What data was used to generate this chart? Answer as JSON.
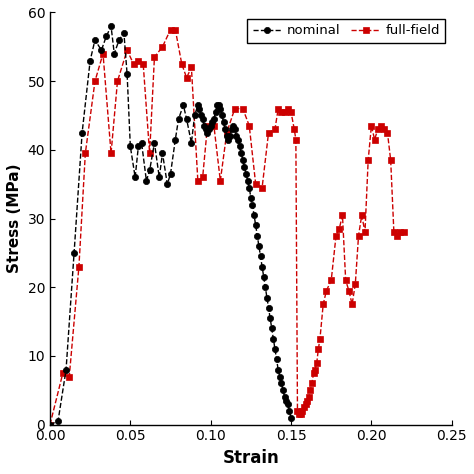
{
  "nominal_strain": [
    0.0,
    0.005,
    0.01,
    0.015,
    0.02,
    0.025,
    0.028,
    0.032,
    0.035,
    0.038,
    0.04,
    0.043,
    0.046,
    0.048,
    0.05,
    0.053,
    0.055,
    0.057,
    0.06,
    0.062,
    0.065,
    0.068,
    0.07,
    0.073,
    0.075,
    0.078,
    0.08,
    0.083,
    0.085,
    0.088,
    0.09,
    0.092,
    0.093,
    0.094,
    0.095,
    0.096,
    0.097,
    0.098,
    0.099,
    0.1,
    0.101,
    0.102,
    0.103,
    0.104,
    0.105,
    0.106,
    0.107,
    0.108,
    0.109,
    0.11,
    0.111,
    0.112,
    0.113,
    0.114,
    0.115,
    0.116,
    0.117,
    0.118,
    0.119,
    0.12,
    0.121,
    0.122,
    0.123,
    0.124,
    0.125,
    0.126,
    0.127,
    0.128,
    0.129,
    0.13,
    0.131,
    0.132,
    0.133,
    0.134,
    0.135,
    0.136,
    0.137,
    0.138,
    0.139,
    0.14,
    0.141,
    0.142,
    0.143,
    0.144,
    0.145,
    0.146,
    0.147,
    0.148,
    0.149,
    0.15
  ],
  "nominal_stress": [
    0.0,
    0.5,
    8.0,
    25.0,
    42.5,
    53.0,
    56.0,
    54.5,
    56.5,
    58.0,
    54.0,
    56.0,
    57.0,
    51.0,
    40.5,
    36.0,
    40.5,
    41.0,
    35.5,
    37.0,
    41.0,
    36.0,
    39.5,
    35.0,
    36.5,
    41.5,
    44.5,
    46.5,
    44.5,
    41.0,
    45.0,
    46.5,
    46.0,
    45.0,
    44.5,
    43.5,
    43.0,
    42.5,
    43.0,
    43.5,
    44.0,
    44.5,
    45.5,
    46.5,
    46.5,
    46.0,
    45.0,
    44.0,
    43.0,
    42.0,
    41.5,
    42.0,
    43.0,
    43.5,
    43.0,
    42.0,
    41.5,
    40.5,
    39.5,
    38.5,
    37.5,
    36.5,
    35.5,
    34.5,
    33.0,
    32.0,
    30.5,
    29.0,
    27.5,
    26.0,
    24.5,
    23.0,
    21.5,
    20.0,
    18.5,
    17.0,
    15.5,
    14.0,
    12.5,
    11.0,
    9.5,
    8.0,
    7.0,
    6.0,
    5.0,
    4.0,
    3.5,
    3.0,
    2.0,
    1.0
  ],
  "fullfield_strain": [
    0.0,
    0.008,
    0.012,
    0.018,
    0.022,
    0.028,
    0.033,
    0.038,
    0.042,
    0.048,
    0.052,
    0.055,
    0.058,
    0.062,
    0.065,
    0.07,
    0.075,
    0.078,
    0.082,
    0.085,
    0.088,
    0.092,
    0.095,
    0.098,
    0.102,
    0.106,
    0.11,
    0.115,
    0.12,
    0.124,
    0.128,
    0.132,
    0.136,
    0.14,
    0.142,
    0.144,
    0.146,
    0.148,
    0.15,
    0.152,
    0.153,
    0.154,
    0.155,
    0.156,
    0.157,
    0.158,
    0.159,
    0.16,
    0.161,
    0.162,
    0.163,
    0.164,
    0.165,
    0.166,
    0.167,
    0.168,
    0.17,
    0.172,
    0.175,
    0.178,
    0.18,
    0.182,
    0.184,
    0.186,
    0.188,
    0.19,
    0.192,
    0.194,
    0.196,
    0.198,
    0.2,
    0.202,
    0.204,
    0.206,
    0.208,
    0.21,
    0.212,
    0.214,
    0.216,
    0.218,
    0.22
  ],
  "fullfield_stress": [
    0.0,
    7.5,
    7.0,
    23.0,
    39.5,
    50.0,
    54.0,
    39.5,
    50.0,
    54.5,
    52.5,
    53.0,
    52.5,
    39.5,
    53.5,
    55.0,
    57.5,
    57.5,
    52.5,
    50.5,
    52.0,
    35.5,
    36.0,
    43.5,
    43.5,
    35.5,
    42.5,
    46.0,
    46.0,
    43.5,
    35.0,
    34.5,
    42.5,
    43.0,
    46.0,
    45.5,
    45.5,
    46.0,
    45.5,
    43.0,
    41.5,
    2.0,
    1.5,
    1.5,
    2.0,
    2.5,
    3.0,
    3.5,
    4.0,
    5.0,
    6.0,
    7.5,
    8.0,
    9.0,
    11.0,
    12.5,
    17.5,
    19.5,
    21.0,
    27.5,
    28.5,
    30.5,
    21.0,
    19.5,
    17.5,
    20.5,
    27.5,
    30.5,
    28.0,
    38.5,
    43.5,
    41.5,
    43.0,
    43.5,
    43.0,
    42.5,
    38.5,
    28.0,
    27.5,
    28.0,
    28.0
  ],
  "xlabel": "Strain",
  "ylabel": "Stress (MPa)",
  "xlim": [
    0,
    0.25
  ],
  "ylim": [
    0,
    60
  ],
  "xticks": [
    0,
    0.05,
    0.1,
    0.15,
    0.2,
    0.25
  ],
  "yticks": [
    0,
    10,
    20,
    30,
    40,
    50,
    60
  ],
  "nominal_color": "#000000",
  "fullfield_color": "#cc0000",
  "legend_nominal": "nominal",
  "legend_fullfield": "full-field",
  "figsize": [
    4.74,
    4.74
  ],
  "dpi": 100
}
